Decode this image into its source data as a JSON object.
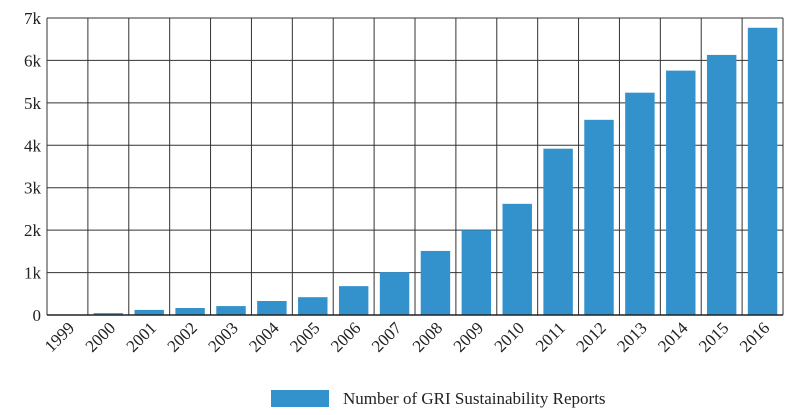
{
  "chart_data": {
    "type": "bar",
    "categories": [
      "1999",
      "2000",
      "2001",
      "2002",
      "2003",
      "2004",
      "2005",
      "2006",
      "2007",
      "2008",
      "2009",
      "2010",
      "2011",
      "2012",
      "2013",
      "2014",
      "2015",
      "2016"
    ],
    "series": [
      {
        "name": "Number of GRI Sustainability Reports",
        "color": "#3392cc",
        "values": [
          10,
          44,
          120,
          165,
          210,
          330,
          420,
          680,
          1010,
          1510,
          2000,
          2620,
          3920,
          4600,
          5240,
          5760,
          6130,
          6770
        ]
      }
    ],
    "ylim": [
      0,
      7000
    ],
    "yticks": [
      0,
      {
        "value": 1000,
        "label": "1k"
      },
      {
        "value": 2000,
        "label": "2k"
      },
      {
        "value": 3000,
        "label": "3k"
      },
      {
        "value": 4000,
        "label": "4k"
      },
      {
        "value": 5000,
        "label": "5k"
      },
      {
        "value": 6000,
        "label": "6k"
      },
      {
        "value": 7000,
        "label": "7k"
      }
    ],
    "grid": true,
    "legend": "bottom"
  }
}
